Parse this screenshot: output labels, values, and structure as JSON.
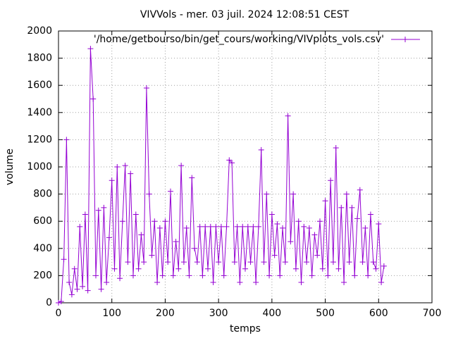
{
  "chart_data": {
    "type": "line",
    "title": "VIVVols - mer. 03 juil. 2024 12:08:51 CEST",
    "x_label": "temps",
    "y_label": "volume",
    "x": [
      0,
      5,
      10,
      15,
      20,
      25,
      30,
      35,
      40,
      45,
      50,
      55,
      60,
      65,
      70,
      75,
      80,
      85,
      90,
      95,
      100,
      105,
      110,
      115,
      120,
      125,
      130,
      135,
      140,
      145,
      150,
      155,
      160,
      165,
      170,
      175,
      180,
      185,
      190,
      195,
      200,
      205,
      210,
      215,
      220,
      225,
      230,
      235,
      240,
      245,
      250,
      255,
      260,
      265,
      270,
      275,
      280,
      285,
      290,
      295,
      300,
      305,
      310,
      315,
      320,
      325,
      330,
      335,
      340,
      345,
      350,
      355,
      360,
      365,
      370,
      375,
      380,
      385,
      390,
      395,
      400,
      405,
      410,
      415,
      420,
      425,
      430,
      435,
      440,
      445,
      450,
      455,
      460,
      465,
      470,
      475,
      480,
      485,
      490,
      495,
      500,
      505,
      510,
      515,
      520,
      525,
      530,
      535,
      540,
      545,
      550,
      555,
      560,
      565,
      570,
      575,
      580,
      585,
      590,
      595,
      600,
      605,
      610
    ],
    "series": [
      {
        "name": "'/home/getbourso/bin/get_cours/working/VIVplots_vols.csv'",
        "color": "#9400d3",
        "values": [
          0,
          10,
          320,
          1200,
          150,
          60,
          250,
          100,
          560,
          120,
          650,
          90,
          1870,
          1500,
          200,
          680,
          100,
          700,
          150,
          480,
          900,
          250,
          1000,
          180,
          600,
          1010,
          300,
          950,
          200,
          650,
          250,
          500,
          300,
          1580,
          800,
          350,
          600,
          150,
          550,
          200,
          600,
          300,
          820,
          200,
          450,
          250,
          1010,
          300,
          550,
          200,
          920,
          400,
          300,
          560,
          200,
          560,
          250,
          560,
          150,
          560,
          300,
          560,
          200,
          560,
          1050,
          1030,
          300,
          560,
          150,
          560,
          250,
          560,
          300,
          560,
          150,
          560,
          1125,
          300,
          800,
          200,
          650,
          350,
          580,
          200,
          550,
          300,
          1375,
          450,
          800,
          250,
          600,
          150,
          560,
          300,
          550,
          200,
          500,
          350,
          600,
          250,
          750,
          200,
          900,
          300,
          1140,
          250,
          700,
          150,
          800,
          300,
          700,
          200,
          620,
          830,
          300,
          550,
          200,
          650,
          300,
          250,
          580,
          150,
          270
        ]
      }
    ],
    "xlim": [
      0,
      700
    ],
    "xticks": [
      0,
      100,
      200,
      300,
      400,
      500,
      600,
      700
    ],
    "ylim": [
      0,
      2000
    ],
    "yticks": [
      0,
      200,
      400,
      600,
      800,
      1000,
      1200,
      1400,
      1600,
      1800,
      2000
    ],
    "grid": true,
    "legend": "top-right"
  }
}
